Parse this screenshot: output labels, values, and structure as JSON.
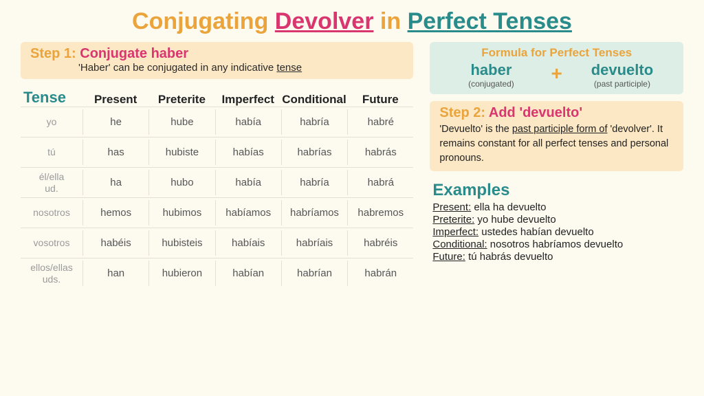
{
  "colors": {
    "orange": "#eaa43b",
    "pink": "#d9366f",
    "teal": "#2a8b8b",
    "dark": "#222222",
    "bg": "#fdfaf0",
    "stepBg": "#fce8c4",
    "formulaBg": "#dceee6",
    "rule": "#e4e0d4",
    "grey": "#9a9a9a"
  },
  "title": {
    "w1": "Conjugating",
    "w2": "Devolver",
    "w3": "in",
    "w4": "Perfect Tenses"
  },
  "step1": {
    "label_a": "Step 1:",
    "label_b": "Conjugate haber",
    "sub_a": "'Haber' can be conjugated in any indicative ",
    "sub_b": "tense"
  },
  "formula": {
    "title": "Formula for Perfect Tenses",
    "left_word": "haber",
    "left_note": "(conjugated)",
    "plus": "+",
    "right_word": "devuelto",
    "right_note": "(past participle)"
  },
  "step2": {
    "label_a": "Step 2:",
    "label_b": "Add 'devuelto'",
    "body_a": "'Devuelto' is the ",
    "body_b": "past participle form of",
    "body_c": " 'devolver'.  It remains constant for all perfect tenses and personal pronouns."
  },
  "examples": {
    "title": "Examples",
    "rows": [
      {
        "label": "Present:",
        "text": " ella ha devuelto"
      },
      {
        "label": "Preterite:",
        "text": " yo hube devuelto"
      },
      {
        "label": "Imperfect:",
        "text": " ustedes habían devuelto"
      },
      {
        "label": "Conditional:",
        "text": " nosotros habríamos devuelto"
      },
      {
        "label": "Future:",
        "text": " tú habrás devuelto"
      }
    ]
  },
  "table": {
    "corner": "Tense",
    "columns": [
      "Present",
      "Preterite",
      "Imperfect",
      "Conditional",
      "Future"
    ],
    "rows": [
      {
        "pronoun": "yo",
        "cells": [
          "he",
          "hube",
          "había",
          "habría",
          "habré"
        ]
      },
      {
        "pronoun": "tú",
        "cells": [
          "has",
          "hubiste",
          "habías",
          "habrías",
          "habrás"
        ]
      },
      {
        "pronoun": "él/ella ud.",
        "cells": [
          "ha",
          "hubo",
          "había",
          "habría",
          "habrá"
        ]
      },
      {
        "pronoun": "nosotros",
        "cells": [
          "hemos",
          "hubimos",
          "habíamos",
          "habríamos",
          "habremos"
        ]
      },
      {
        "pronoun": "vosotros",
        "cells": [
          "habéis",
          "hubisteis",
          "habíais",
          "habríais",
          "habréis"
        ]
      },
      {
        "pronoun": "ellos/ellas uds.",
        "cells": [
          "han",
          "hubieron",
          "habían",
          "habrían",
          "habrán"
        ]
      }
    ],
    "fonts": {
      "corner": 22,
      "header": 17,
      "pronoun": 14,
      "cell": 15
    }
  }
}
